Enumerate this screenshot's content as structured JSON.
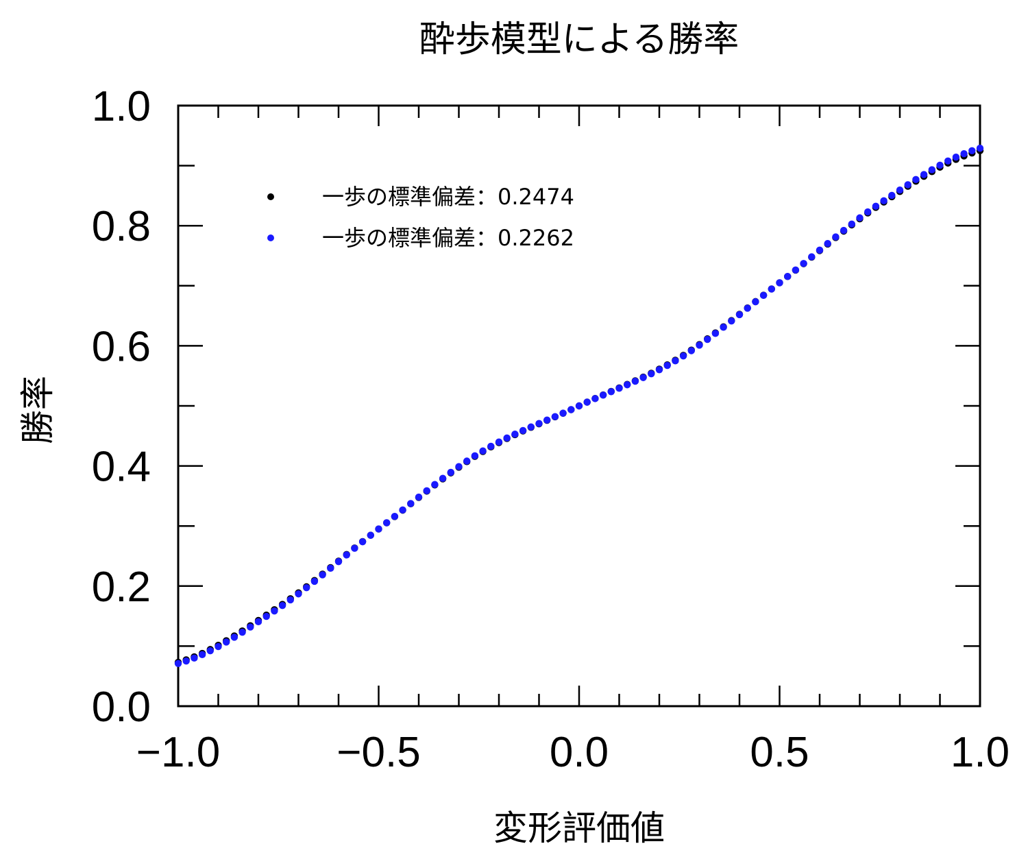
{
  "chart_data": {
    "type": "scatter",
    "title": "酔歩模型による勝率",
    "xlabel": "変形評価値",
    "ylabel": "勝率",
    "xlim": [
      -1.0,
      1.0
    ],
    "ylim": [
      0.0,
      1.0
    ],
    "x_ticks": [
      "−1.0",
      "−0.5",
      "0.0",
      "0.5",
      "1.0"
    ],
    "y_ticks": [
      "0.0",
      "0.2",
      "0.4",
      "0.6",
      "0.8",
      "1.0"
    ],
    "grid": false,
    "legend_position": "top-left",
    "x_start": -1.0,
    "x_end": 1.0,
    "point_count": 101,
    "series": [
      {
        "name": "一歩の標準偏差：0.2474",
        "color": "#000000",
        "key_points": [
          [
            -1.0,
            0.073
          ],
          [
            -0.75,
            0.165
          ],
          [
            -0.5,
            0.295
          ],
          [
            -0.25,
            0.42
          ],
          [
            0.0,
            0.5
          ],
          [
            0.25,
            0.58
          ],
          [
            0.5,
            0.705
          ],
          [
            0.75,
            0.835
          ],
          [
            1.0,
            0.925
          ]
        ]
      },
      {
        "name": "一歩の標準偏差：0.2262",
        "color": "#1a1aff",
        "key_points": [
          [
            -1.0,
            0.071
          ],
          [
            -0.75,
            0.163
          ],
          [
            -0.5,
            0.295
          ],
          [
            -0.25,
            0.421
          ],
          [
            0.0,
            0.5
          ],
          [
            0.25,
            0.579
          ],
          [
            0.5,
            0.705
          ],
          [
            0.75,
            0.837
          ],
          [
            1.0,
            0.929
          ]
        ]
      }
    ]
  }
}
